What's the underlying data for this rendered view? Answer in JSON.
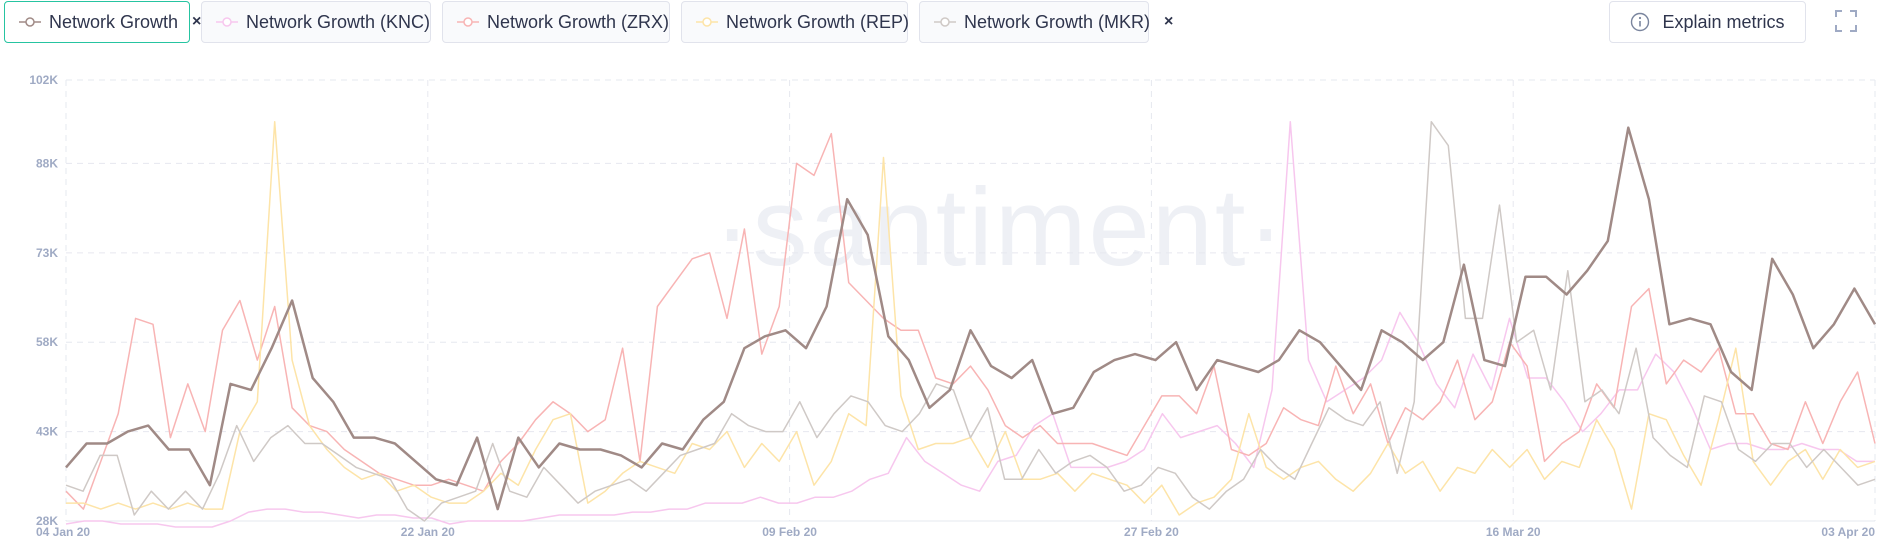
{
  "toolbar": {
    "chips": [
      {
        "label": "Network Growth",
        "color": "#a08a86",
        "active": true
      },
      {
        "label": "Network Growth (KNC)",
        "color": "#f7c7ee"
      },
      {
        "label": "Network Growth (ZRX)",
        "color": "#f8b4b4"
      },
      {
        "label": "Network Growth (REP)",
        "color": "#fde4a8"
      },
      {
        "label": "Network Growth (MKR)",
        "color": "#cfc9c6"
      }
    ],
    "close_glyph": "×",
    "explain_label": "Explain metrics"
  },
  "watermark": "·santiment·",
  "chart_data": {
    "type": "line",
    "x_start": "2020-01-04",
    "x_end": "2020-04-03",
    "xtick_labels": [
      {
        "label": "04 Jan 20",
        "date": "2020-01-04"
      },
      {
        "label": "22 Jan 20",
        "date": "2020-01-22"
      },
      {
        "label": "09 Feb 20",
        "date": "2020-02-09"
      },
      {
        "label": "27 Feb 20",
        "date": "2020-02-27"
      },
      {
        "label": "16 Mar 20",
        "date": "2020-03-16"
      },
      {
        "label": "03 Apr 20",
        "date": "2020-04-03"
      }
    ],
    "ytick_values": [
      28000,
      43000,
      58000,
      73000,
      88000,
      102000
    ],
    "ytick_labels": [
      "28K",
      "43K",
      "58K",
      "73K",
      "88K",
      "102K"
    ],
    "ylim": [
      28000,
      102000
    ],
    "grid": true,
    "series": [
      {
        "name": "Network Growth (KNC)",
        "color": "#f7c7ee",
        "width": 1.5,
        "values": [
          27.5,
          28,
          28,
          27.5,
          27.5,
          27.5,
          27,
          27,
          27,
          28,
          29.5,
          30,
          30,
          29.5,
          29.5,
          29,
          28.5,
          29,
          29,
          28.5,
          28.5,
          27.5,
          28,
          28,
          28,
          28,
          28.5,
          29,
          29,
          29,
          29,
          29.5,
          29.5,
          30,
          30,
          31,
          31,
          31,
          32,
          31,
          31,
          32,
          32,
          33,
          35,
          36,
          42,
          38,
          36,
          34,
          33,
          38,
          39,
          44,
          46,
          37,
          37,
          37,
          38,
          40,
          46,
          42,
          43,
          44,
          41,
          37,
          50,
          95,
          55,
          48,
          50,
          52,
          55,
          63,
          58,
          51,
          47,
          56,
          50,
          62,
          52,
          52,
          48,
          43,
          46,
          50,
          50,
          56,
          53,
          47,
          40,
          41,
          41,
          40,
          40,
          41,
          40,
          40,
          38,
          38
        ]
      },
      {
        "name": "Network Growth (ZRX)",
        "color": "#f8b4b4",
        "width": 1.5,
        "values": [
          33,
          30,
          38,
          46,
          62,
          61,
          42,
          51,
          43,
          60,
          65,
          55,
          64,
          47,
          44,
          43,
          40,
          38,
          36,
          35,
          34,
          34,
          35,
          34,
          33,
          38,
          41,
          45,
          48,
          46,
          43,
          45,
          57,
          38,
          64,
          68,
          72,
          73,
          62,
          77,
          56,
          64,
          88,
          86,
          93,
          68,
          65,
          62,
          60,
          60,
          52,
          51,
          54,
          50,
          44,
          42,
          44,
          41,
          41,
          41,
          40,
          39,
          44,
          49,
          49,
          46,
          54,
          40,
          39,
          41,
          47,
          45,
          44,
          54,
          46,
          51,
          41,
          47,
          45,
          48,
          55,
          45,
          48,
          58,
          54,
          38,
          41,
          43,
          51,
          47,
          64,
          67,
          51,
          55,
          53,
          57,
          46,
          46,
          41,
          40,
          48,
          41,
          48,
          53,
          41
        ]
      },
      {
        "name": "Network Growth (REP)",
        "color": "#fde4a8",
        "width": 1.5,
        "values": [
          31,
          31,
          30,
          31,
          30,
          31,
          30,
          31,
          30,
          30,
          43,
          48,
          95,
          55,
          44,
          40,
          37,
          35,
          36,
          33,
          34,
          32,
          31,
          31,
          33,
          36,
          34,
          40,
          45,
          46,
          31,
          33,
          36,
          38,
          37,
          36,
          41,
          40,
          43,
          37,
          41,
          38,
          43,
          34,
          38,
          46,
          44,
          89,
          49,
          40,
          41,
          41,
          42,
          37,
          43,
          35,
          35,
          36,
          33,
          36,
          35,
          34,
          31,
          34,
          29,
          31,
          32,
          35,
          46,
          37,
          35,
          37,
          38,
          35,
          33,
          36,
          41,
          36,
          38,
          33,
          37,
          36,
          40,
          37,
          40,
          35,
          38,
          37,
          45,
          40,
          30,
          46,
          45,
          39,
          34,
          45,
          57,
          38,
          34,
          38,
          40,
          35,
          40,
          37,
          38
        ]
      },
      {
        "name": "Network Growth (MKR)",
        "color": "#cfc9c6",
        "width": 1.5,
        "values": [
          34,
          33,
          39,
          39,
          29,
          33,
          30,
          33,
          30,
          36,
          44,
          38,
          42,
          44,
          41,
          41,
          39,
          37,
          36,
          35,
          30,
          28,
          31,
          32,
          33,
          41,
          33,
          32,
          37,
          34,
          31,
          33,
          34,
          35,
          33,
          36,
          39,
          40,
          41,
          46,
          44,
          43,
          43,
          48,
          42,
          46,
          49,
          48,
          44,
          43,
          46,
          51,
          50,
          42,
          47,
          35,
          35,
          40,
          36,
          38,
          39,
          37,
          33,
          34,
          37,
          36,
          32,
          30,
          33,
          35,
          40,
          37,
          35,
          41,
          47,
          45,
          44,
          48,
          36,
          48,
          95,
          91,
          62,
          62,
          81,
          58,
          60,
          50,
          70,
          48,
          50,
          46,
          57,
          42,
          39,
          37,
          49,
          48,
          40,
          38,
          41,
          41,
          37,
          40,
          37,
          34,
          35
        ]
      },
      {
        "name": "Network Growth",
        "color": "#a08a86",
        "width": 2.5,
        "values": [
          37,
          41,
          41,
          43,
          44,
          40,
          40,
          34,
          51,
          50,
          57,
          65,
          52,
          48,
          42,
          42,
          41,
          38,
          35,
          34,
          42,
          30,
          42,
          37,
          41,
          40,
          40,
          39,
          37,
          41,
          40,
          45,
          48,
          57,
          59,
          60,
          57,
          64,
          82,
          76,
          59,
          55,
          47,
          50,
          60,
          54,
          52,
          55,
          46,
          47,
          53,
          55,
          56,
          55,
          58,
          50,
          55,
          54,
          53,
          55,
          60,
          58,
          54,
          50,
          60,
          58,
          55,
          58,
          71,
          55,
          54,
          69,
          69,
          66,
          70,
          75,
          94,
          82,
          61,
          62,
          61,
          53,
          50,
          72,
          66,
          57,
          61,
          67,
          61
        ]
      }
    ]
  }
}
